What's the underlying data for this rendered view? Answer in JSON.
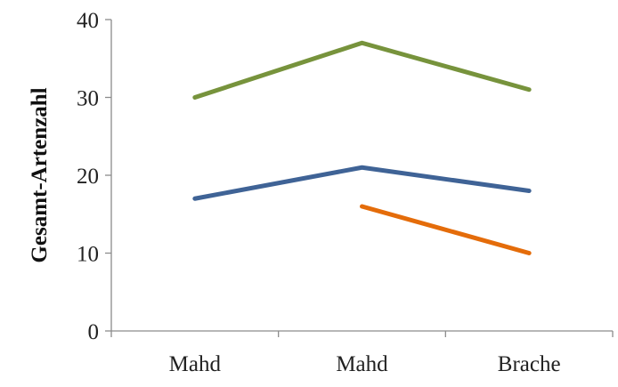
{
  "chart_data": {
    "type": "line",
    "title": "",
    "xlabel": "",
    "ylabel": "Gesamt-Artenzahl",
    "categories": [
      "Mahd",
      "Mahd",
      "Brache"
    ],
    "ylim": [
      0,
      40
    ],
    "yticks": [
      0,
      10,
      20,
      30,
      40
    ],
    "grid": false,
    "legend": "none",
    "series": [
      {
        "color": "#77933c",
        "values": [
          30,
          37,
          31
        ]
      },
      {
        "color": "#3f6396",
        "values": [
          17,
          21,
          18
        ]
      },
      {
        "color": "#e46c0a",
        "values": [
          null,
          16,
          10
        ]
      }
    ]
  }
}
